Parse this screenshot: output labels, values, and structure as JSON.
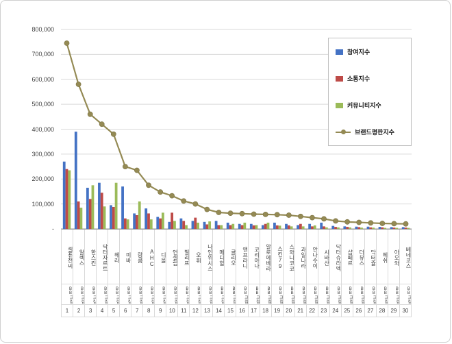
{
  "chart_data": {
    "type": "bar",
    "title": "",
    "xlabel": "",
    "ylabel": "",
    "legend_position": "top-right",
    "grid": true,
    "y_axis": {
      "min": 0,
      "max": 800000,
      "step": 100000,
      "tick_labels": [
        "800,000",
        "700,000",
        "600,000",
        "500,000",
        "400,000",
        "300,000",
        "200,000",
        "100,000",
        "-"
      ]
    },
    "categories": [
      "셀퓨전씨",
      "알렉스",
      "한스킨",
      "닥터자르트",
      "헤라",
      "미바",
      "랑콤",
      "AHC",
      "디올",
      "언셀럽",
      "빌리프",
      "오휘",
      "나인위시스",
      "메디힐",
      "클리오",
      "앤프라니",
      "코리아나",
      "알로에베라",
      "스킨79",
      "스와니코코",
      "과일나라",
      "안나수이",
      "시바산",
      "닥터슈라멕",
      "샵떼르",
      "더뷰스",
      "닥터쥴",
      "헤쉬",
      "아오와",
      "베네코스"
    ],
    "category_sub_label": "BB크림",
    "ranks": [
      "1",
      "2",
      "3",
      "4",
      "5",
      "6",
      "7",
      "8",
      "9",
      "10",
      "11",
      "12",
      "13",
      "14",
      "15",
      "16",
      "17",
      "18",
      "19",
      "20",
      "21",
      "22",
      "23",
      "24",
      "25",
      "26",
      "27",
      "28",
      "29",
      "30"
    ],
    "series": [
      {
        "name": "참여지수",
        "type": "bar",
        "color": "#4472C4",
        "values": [
          270000,
          390000,
          165000,
          185000,
          95000,
          170000,
          62000,
          82000,
          48000,
          28000,
          42000,
          32000,
          28000,
          32000,
          25000,
          20000,
          20000,
          15000,
          25000,
          20000,
          15000,
          20000,
          25000,
          12000,
          10000,
          9000,
          9000,
          8000,
          7000,
          7000
        ]
      },
      {
        "name": "소통지수",
        "type": "bar",
        "color": "#BE4B48",
        "values": [
          240000,
          110000,
          120000,
          145000,
          88000,
          42000,
          55000,
          62000,
          42000,
          65000,
          32000,
          45000,
          18000,
          15000,
          15000,
          15000,
          14000,
          20000,
          14000,
          14000,
          20000,
          10000,
          10000,
          8000,
          8000,
          7000,
          6000,
          6000,
          5000,
          5000
        ]
      },
      {
        "name": "커뮤니티지수",
        "type": "bar",
        "color": "#9BBB59",
        "values": [
          235000,
          85000,
          175000,
          90000,
          185000,
          38000,
          110000,
          38000,
          65000,
          32000,
          15000,
          25000,
          30000,
          15000,
          20000,
          25000,
          15000,
          25000,
          13000,
          10000,
          10000,
          14000,
          6000,
          6000,
          6000,
          5000,
          5000,
          4000,
          4000,
          4000
        ]
      },
      {
        "name": "브랜드평판지수",
        "type": "line",
        "color": "#948A54",
        "values": [
          745000,
          580000,
          460000,
          420000,
          380000,
          250000,
          235000,
          175000,
          148000,
          133000,
          112000,
          100000,
          78000,
          66000,
          63000,
          61000,
          59000,
          58000,
          57000,
          55000,
          50000,
          45000,
          40000,
          32000,
          28000,
          26000,
          24000,
          22000,
          21000,
          20000
        ]
      }
    ],
    "gridline_color": "#d9d9d9",
    "axis_line_color": "#9a9a9a"
  }
}
